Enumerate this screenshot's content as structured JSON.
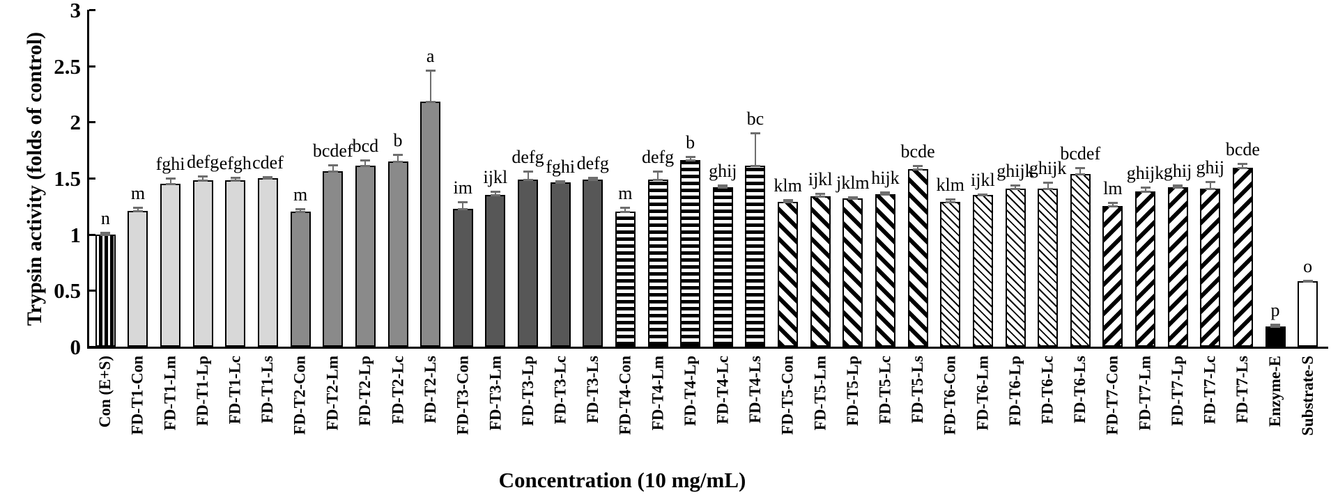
{
  "chart_data": {
    "type": "bar",
    "title": "",
    "xlabel": "Concentration (10 mg/mL)",
    "ylabel": "Trypsin activity (folds of control)",
    "ylim": [
      0,
      3
    ],
    "yticks": [
      "0",
      "0.5",
      "1",
      "1.5",
      "2",
      "2.5",
      "3"
    ],
    "grid": false,
    "legend": "none",
    "error_bar_color": "#6e6e6e",
    "axis_color": "#000000",
    "pattern_styles": {
      "control": {
        "type": "vertical-stripes",
        "fg": "#000000",
        "bg": "#ffffff"
      },
      "t1": {
        "type": "solid",
        "fill": "#d8d8d8"
      },
      "t2": {
        "type": "solid",
        "fill": "#8a8a8a"
      },
      "t3": {
        "type": "solid",
        "fill": "#575757"
      },
      "t4": {
        "type": "horizontal-stripes",
        "fg": "#000000",
        "bg": "#ffffff"
      },
      "t5": {
        "type": "diagonal-stripes-down",
        "fg": "#000000",
        "bg": "#ffffff"
      },
      "t6": {
        "type": "thin-diagonal-hatch",
        "fg": "#000000",
        "bg": "#ffffff"
      },
      "t7": {
        "type": "diagonal-stripes-up",
        "fg": "#000000",
        "bg": "#ffffff"
      },
      "enzyme": {
        "type": "solid",
        "fill": "#000000"
      },
      "substrate": {
        "type": "solid",
        "fill": "#ffffff"
      }
    },
    "bars": [
      {
        "label": "Con (E+S)",
        "value": 1.0,
        "error": 0.015,
        "letter": "n",
        "pattern": "control"
      },
      {
        "label": "FD-T1-Con",
        "value": 1.21,
        "error": 0.03,
        "letter": "m",
        "pattern": "t1"
      },
      {
        "label": "FD-T1-Lm",
        "value": 1.45,
        "error": 0.05,
        "letter": "fghi",
        "pattern": "t1"
      },
      {
        "label": "FD-T1-Lp",
        "value": 1.48,
        "error": 0.04,
        "letter": "defg",
        "pattern": "t1"
      },
      {
        "label": "FD-T1-Lc",
        "value": 1.48,
        "error": 0.025,
        "letter": "efgh",
        "pattern": "t1"
      },
      {
        "label": "FD-T1-Ls",
        "value": 1.5,
        "error": 0.01,
        "letter": "cdef",
        "pattern": "t1"
      },
      {
        "label": "FD-T2-Con",
        "value": 1.2,
        "error": 0.025,
        "letter": "m",
        "pattern": "t2"
      },
      {
        "label": "FD-T2-Lm",
        "value": 1.56,
        "error": 0.06,
        "letter": "bcdef",
        "pattern": "t2"
      },
      {
        "label": "FD-T2-Lp",
        "value": 1.61,
        "error": 0.05,
        "letter": "bcd",
        "pattern": "t2"
      },
      {
        "label": "FD-T2-Lc",
        "value": 1.65,
        "error": 0.06,
        "letter": "b",
        "pattern": "t2"
      },
      {
        "label": "FD-T2-Ls",
        "value": 2.18,
        "error": 0.28,
        "letter": "a",
        "pattern": "t2"
      },
      {
        "label": "FD-T3-Con",
        "value": 1.23,
        "error": 0.06,
        "letter": "im",
        "pattern": "t3"
      },
      {
        "label": "FD-T3-Lm",
        "value": 1.35,
        "error": 0.03,
        "letter": "ijkl",
        "pattern": "t3"
      },
      {
        "label": "FD-T3-Lp",
        "value": 1.49,
        "error": 0.07,
        "letter": "defg",
        "pattern": "t3"
      },
      {
        "label": "FD-T3-Lc",
        "value": 1.46,
        "error": 0.015,
        "letter": "fghi",
        "pattern": "t3"
      },
      {
        "label": "FD-T3-Ls",
        "value": 1.49,
        "error": 0.015,
        "letter": "defg",
        "pattern": "t3"
      },
      {
        "label": "FD-T4-Con",
        "value": 1.2,
        "error": 0.04,
        "letter": "m",
        "pattern": "t4"
      },
      {
        "label": "FD-T4-Lm",
        "value": 1.49,
        "error": 0.07,
        "letter": "defg",
        "pattern": "t4"
      },
      {
        "label": "FD-T4-Lp",
        "value": 1.66,
        "error": 0.03,
        "letter": "b",
        "pattern": "t4"
      },
      {
        "label": "FD-T4-Lc",
        "value": 1.42,
        "error": 0.02,
        "letter": "ghij",
        "pattern": "t4"
      },
      {
        "label": "FD-T4-Ls",
        "value": 1.61,
        "error": 0.29,
        "letter": "bc",
        "pattern": "t4"
      },
      {
        "label": "FD-T5-Con",
        "value": 1.29,
        "error": 0.015,
        "letter": "klm",
        "pattern": "t5"
      },
      {
        "label": "FD-T5-Lm",
        "value": 1.34,
        "error": 0.025,
        "letter": "ijkl",
        "pattern": "t5"
      },
      {
        "label": "FD-T5-Lp",
        "value": 1.32,
        "error": 0.01,
        "letter": "jklm",
        "pattern": "t5"
      },
      {
        "label": "FD-T5-Lc",
        "value": 1.36,
        "error": 0.015,
        "letter": "hijk",
        "pattern": "t5"
      },
      {
        "label": "FD-T5-Ls",
        "value": 1.58,
        "error": 0.03,
        "letter": "bcde",
        "pattern": "t5"
      },
      {
        "label": "FD-T6-Con",
        "value": 1.29,
        "error": 0.025,
        "letter": "klm",
        "pattern": "t6"
      },
      {
        "label": "FD-T6-Lm",
        "value": 1.35,
        "error": 0.01,
        "letter": "ijkl",
        "pattern": "t6"
      },
      {
        "label": "FD-T6-Lp",
        "value": 1.41,
        "error": 0.03,
        "letter": "ghijk",
        "pattern": "t6"
      },
      {
        "label": "FD-T6-Lc",
        "value": 1.41,
        "error": 0.05,
        "letter": "ghijk",
        "pattern": "t6"
      },
      {
        "label": "FD-T6-Ls",
        "value": 1.54,
        "error": 0.05,
        "letter": "bcdef",
        "pattern": "t6"
      },
      {
        "label": "FD-T7-Con",
        "value": 1.25,
        "error": 0.03,
        "letter": "lm",
        "pattern": "t7"
      },
      {
        "label": "FD-T7-Lm",
        "value": 1.38,
        "error": 0.04,
        "letter": "ghijk",
        "pattern": "t7"
      },
      {
        "label": "FD-T7-Lp",
        "value": 1.42,
        "error": 0.02,
        "letter": "ghij",
        "pattern": "t7"
      },
      {
        "label": "FD-T7-Lc",
        "value": 1.41,
        "error": 0.06,
        "letter": "ghij",
        "pattern": "t7"
      },
      {
        "label": "FD-T7-Ls",
        "value": 1.59,
        "error": 0.04,
        "letter": "bcde",
        "pattern": "t7"
      },
      {
        "label": "Enzyme-E",
        "value": 0.18,
        "error": 0.02,
        "letter": "p",
        "pattern": "enzyme"
      },
      {
        "label": "Substrate-S",
        "value": 0.58,
        "error": 0.01,
        "letter": "o",
        "pattern": "substrate"
      }
    ]
  }
}
